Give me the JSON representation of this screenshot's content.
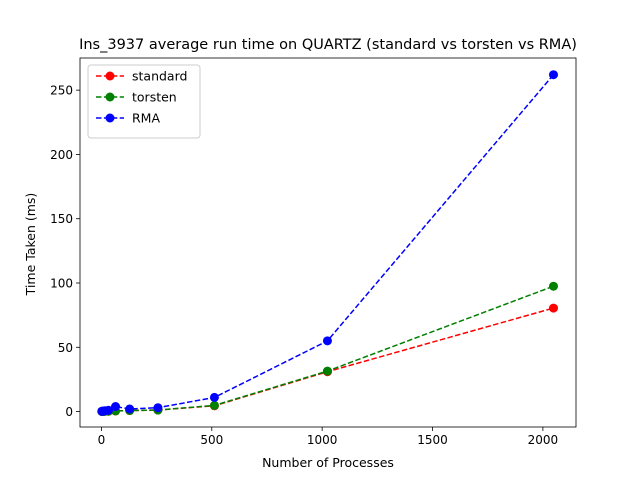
{
  "chart_data": {
    "type": "line",
    "title": "Ins_3937 average run time on QUARTZ (standard vs torsten vs RMA)",
    "xlabel": "Number of Processes",
    "ylabel": "Time Taken (ms)",
    "xlim": [
      -97,
      2150
    ],
    "ylim": [
      -12,
      275
    ],
    "xticks": [
      0,
      500,
      1000,
      1500,
      2000
    ],
    "yticks": [
      0,
      50,
      100,
      150,
      200,
      250
    ],
    "grid": false,
    "legend_position": "top-left",
    "x": [
      2,
      4,
      8,
      16,
      32,
      64,
      128,
      256,
      512,
      1024,
      2048
    ],
    "series": [
      {
        "name": "standard",
        "color": "#ff0000",
        "values": [
          0.1,
          0.1,
          0.1,
          0.2,
          0.3,
          0.5,
          0.8,
          1.2,
          4.5,
          31,
          80.5
        ]
      },
      {
        "name": "torsten",
        "color": "#008000",
        "values": [
          0.1,
          0.1,
          0.1,
          0.2,
          0.3,
          0.5,
          0.8,
          1.2,
          4.8,
          31.5,
          97.5
        ]
      },
      {
        "name": "RMA",
        "color": "#0000ff",
        "values": [
          0.2,
          0.3,
          0.4,
          0.6,
          1.0,
          3.9,
          2.0,
          3.0,
          11.0,
          55,
          262
        ]
      }
    ]
  }
}
